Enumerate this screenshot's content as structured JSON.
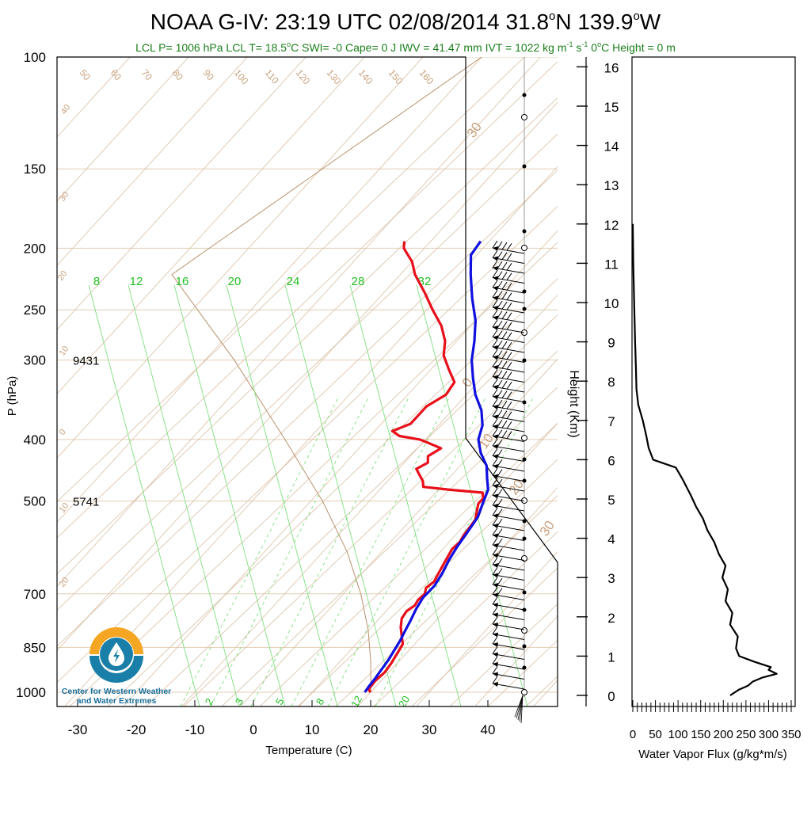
{
  "header": {
    "title_main": "NOAA G-IV: 23:19 UTC 02/08/2014  31.8",
    "title_deg1": "o",
    "title_mid": "N 139.9",
    "title_deg2": "o",
    "title_end": "W",
    "subtitle": {
      "lcl_p": "LCL P= 1006 hPa",
      "lcl_t_a": "LCL T= 18.5",
      "lcl_t_deg": "o",
      "lcl_t_b": "C",
      "swi": "SWI= -0",
      "cape": "Cape= 0 J",
      "iwv": "IWV = 41.47 mm",
      "ivt_a": "IVT = 1022 kg m",
      "ivt_sup1": "-1",
      "ivt_b": " s",
      "ivt_sup2": "-1",
      "zero_a": "0",
      "zero_deg": "o",
      "zero_b": "C Height = 0 m"
    },
    "subtitle_color": "#1a7f1a"
  },
  "logo": {
    "line1": "Center for Western Weather",
    "line2": "and Water Extremes",
    "colors": {
      "sun": "#f5a623",
      "water": "#1a7fa8",
      "text": "#1a6f9a"
    }
  },
  "chart_data": [
    {
      "type": "line",
      "title": "NOAA G-IV: 23:19 UTC 02/08/2014 31.8°N 139.9°W",
      "subtype": "skew-T log-P sounding",
      "xlabel": "Temperature (C)",
      "ylabel": "P (hPa)",
      "xlim": [
        -35,
        50
      ],
      "ylim": [
        1000,
        100
      ],
      "y_scale": "log",
      "x_ticks": [
        "-30",
        "-20",
        "-10",
        "0",
        "10",
        "20",
        "30",
        "40"
      ],
      "y_ticks": [
        "100",
        "150",
        "200",
        "250",
        "300",
        "400",
        "500",
        "700",
        "850",
        "1000"
      ],
      "height_labels": [
        {
          "p": 300,
          "label": "9431"
        },
        {
          "p": 500,
          "label": "5741"
        }
      ],
      "isotherm_labels": [
        "50",
        "60",
        "70",
        "80",
        "90",
        "100",
        "110",
        "120",
        "130",
        "140",
        "150",
        "160"
      ],
      "theta_labels": [
        "40",
        "30",
        "20",
        "10",
        "0",
        "10",
        "20",
        "30",
        "0",
        "10",
        "20",
        "30"
      ],
      "mixing_ratio_top_labels": [
        "8",
        "12",
        "16",
        "20",
        "24",
        "28",
        "32"
      ],
      "mixing_ratio_bottom_labels": [
        "2",
        "3",
        "5",
        "8",
        "12",
        "20"
      ],
      "series": [
        {
          "color": "#e8101a",
          "points": [
            {
              "p": 1000,
              "t": 20
            },
            {
              "p": 990,
              "t": 19.2
            },
            {
              "p": 960,
              "t": 19
            },
            {
              "p": 930,
              "t": 19.3
            },
            {
              "p": 900,
              "t": 19
            },
            {
              "p": 870,
              "t": 18.5
            },
            {
              "p": 840,
              "t": 18
            },
            {
              "p": 815,
              "t": 16.5
            },
            {
              "p": 790,
              "t": 15
            },
            {
              "p": 765,
              "t": 13.8
            },
            {
              "p": 745,
              "t": 13.5
            },
            {
              "p": 730,
              "t": 14
            },
            {
              "p": 715,
              "t": 13.7
            },
            {
              "p": 700,
              "t": 13.9
            },
            {
              "p": 685,
              "t": 13.2
            },
            {
              "p": 670,
              "t": 13.6
            },
            {
              "p": 655,
              "t": 13.2
            },
            {
              "p": 640,
              "t": 12.8
            },
            {
              "p": 625,
              "t": 12.4
            },
            {
              "p": 610,
              "t": 12
            },
            {
              "p": 595,
              "t": 11.6
            },
            {
              "p": 580,
              "t": 11.8
            },
            {
              "p": 565,
              "t": 11.4
            },
            {
              "p": 550,
              "t": 11.2
            },
            {
              "p": 535,
              "t": 11
            },
            {
              "p": 520,
              "t": 10
            },
            {
              "p": 505,
              "t": 9
            },
            {
              "p": 495,
              "t": 9
            },
            {
              "p": 485,
              "t": 8
            },
            {
              "p": 480,
              "t": 2
            },
            {
              "p": 475,
              "t": -3
            },
            {
              "p": 465,
              "t": -4
            },
            {
              "p": 455,
              "t": -5.5
            },
            {
              "p": 445,
              "t": -7
            },
            {
              "p": 435,
              "t": -6
            },
            {
              "p": 425,
              "t": -7
            },
            {
              "p": 413,
              "t": -6
            },
            {
              "p": 405,
              "t": -9
            },
            {
              "p": 400,
              "t": -11
            },
            {
              "p": 395,
              "t": -15
            },
            {
              "p": 388,
              "t": -17
            },
            {
              "p": 378,
              "t": -15
            },
            {
              "p": 368,
              "t": -15
            },
            {
              "p": 355,
              "t": -15
            },
            {
              "p": 340,
              "t": -13.5
            },
            {
              "p": 325,
              "t": -14
            },
            {
              "p": 310,
              "t": -17
            },
            {
              "p": 295,
              "t": -20
            },
            {
              "p": 280,
              "t": -22
            },
            {
              "p": 265,
              "t": -25
            },
            {
              "p": 250,
              "t": -29
            },
            {
              "p": 235,
              "t": -33
            },
            {
              "p": 220,
              "t": -37.5
            },
            {
              "p": 210,
              "t": -40
            },
            {
              "p": 200,
              "t": -43.5
            },
            {
              "p": 195,
              "t": -44.5
            }
          ]
        },
        {
          "color": "#1010e0",
          "points": [
            {
              "p": 1000,
              "t": 19
            },
            {
              "p": 980,
              "t": 18.8
            },
            {
              "p": 950,
              "t": 18.6
            },
            {
              "p": 920,
              "t": 18.3
            },
            {
              "p": 890,
              "t": 18
            },
            {
              "p": 860,
              "t": 17.5
            },
            {
              "p": 830,
              "t": 17
            },
            {
              "p": 800,
              "t": 16.3
            },
            {
              "p": 770,
              "t": 15.6
            },
            {
              "p": 740,
              "t": 14.8
            },
            {
              "p": 710,
              "t": 14.2
            },
            {
              "p": 680,
              "t": 14.3
            },
            {
              "p": 650,
              "t": 13.7
            },
            {
              "p": 620,
              "t": 12.8
            },
            {
              "p": 590,
              "t": 12.1
            },
            {
              "p": 560,
              "t": 11.6
            },
            {
              "p": 530,
              "t": 11
            },
            {
              "p": 500,
              "t": 9.5
            },
            {
              "p": 480,
              "t": 8.5
            },
            {
              "p": 460,
              "t": 6.5
            },
            {
              "p": 440,
              "t": 4.5
            },
            {
              "p": 420,
              "t": 1.5
            },
            {
              "p": 400,
              "t": -1
            },
            {
              "p": 380,
              "t": -2.5
            },
            {
              "p": 360,
              "t": -5
            },
            {
              "p": 340,
              "t": -8.5
            },
            {
              "p": 320,
              "t": -11.5
            },
            {
              "p": 300,
              "t": -14.5
            },
            {
              "p": 280,
              "t": -17
            },
            {
              "p": 260,
              "t": -20
            },
            {
              "p": 240,
              "t": -24
            },
            {
              "p": 220,
              "t": -28
            },
            {
              "p": 205,
              "t": -31
            },
            {
              "p": 195,
              "t": -31.5
            }
          ]
        }
      ]
    },
    {
      "type": "line",
      "title": "",
      "xlabel": "Water Vapor Flux (g/kg*m/s)",
      "ylabel": "Height (Km)",
      "xlim": [
        0,
        350
      ],
      "ylim": [
        0,
        16
      ],
      "x_ticks": [
        "0",
        "50",
        "100",
        "150",
        "200",
        "250",
        "300",
        "350"
      ],
      "y_ticks": [
        "0",
        "1",
        "2",
        "3",
        "4",
        "5",
        "6",
        "7",
        "8",
        "9",
        "10",
        "11",
        "12",
        "13",
        "14",
        "15",
        "16"
      ],
      "series": [
        {
          "color": "#000000",
          "points": [
            {
              "x": 215,
              "h": 0
            },
            {
              "x": 235,
              "h": 0.15
            },
            {
              "x": 255,
              "h": 0.25
            },
            {
              "x": 265,
              "h": 0.35
            },
            {
              "x": 285,
              "h": 0.45
            },
            {
              "x": 318,
              "h": 0.55
            },
            {
              "x": 300,
              "h": 0.65
            },
            {
              "x": 305,
              "h": 0.72
            },
            {
              "x": 270,
              "h": 0.85
            },
            {
              "x": 235,
              "h": 1.0
            },
            {
              "x": 228,
              "h": 1.2
            },
            {
              "x": 232,
              "h": 1.5
            },
            {
              "x": 215,
              "h": 1.8
            },
            {
              "x": 220,
              "h": 2.1
            },
            {
              "x": 205,
              "h": 2.4
            },
            {
              "x": 210,
              "h": 2.7
            },
            {
              "x": 198,
              "h": 3.0
            },
            {
              "x": 205,
              "h": 3.3
            },
            {
              "x": 190,
              "h": 3.6
            },
            {
              "x": 180,
              "h": 3.9
            },
            {
              "x": 165,
              "h": 4.2
            },
            {
              "x": 155,
              "h": 4.5
            },
            {
              "x": 140,
              "h": 4.8
            },
            {
              "x": 128,
              "h": 5.1
            },
            {
              "x": 110,
              "h": 5.5
            },
            {
              "x": 95,
              "h": 5.8
            },
            {
              "x": 45,
              "h": 6.0
            },
            {
              "x": 35,
              "h": 6.3
            },
            {
              "x": 30,
              "h": 6.6
            },
            {
              "x": 22,
              "h": 7.0
            },
            {
              "x": 12,
              "h": 7.4
            },
            {
              "x": 8,
              "h": 7.8
            },
            {
              "x": 7,
              "h": 8.3
            },
            {
              "x": 5,
              "h": 9.0
            },
            {
              "x": 3,
              "h": 10.0
            },
            {
              "x": 1,
              "h": 11.0
            },
            {
              "x": 0,
              "h": 12.0
            }
          ]
        }
      ]
    }
  ]
}
